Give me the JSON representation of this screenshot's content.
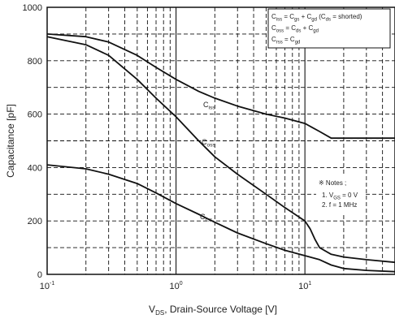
{
  "chart_data": {
    "type": "line",
    "title": "",
    "xlabel_main": "V",
    "xlabel_sub": "DS",
    "xlabel_rest": ", Drain-Source Voltage [V]",
    "ylabel": "Capacitance [pF]",
    "xscale": "log",
    "xlim": [
      0.1,
      50
    ],
    "ylim": [
      0,
      1000
    ],
    "grid": true,
    "grid_style": "dashed",
    "xticks": [
      {
        "base": "10",
        "exp": "-1"
      },
      {
        "base": "10",
        "exp": "0"
      },
      {
        "base": "10",
        "exp": "1"
      }
    ],
    "yticks": [
      "0",
      "200",
      "400",
      "600",
      "800",
      "1000"
    ],
    "series": [
      {
        "name": "Ciss",
        "label_main": "C",
        "label_sub": "iss",
        "x": [
          0.1,
          0.2,
          0.3,
          0.5,
          0.7,
          1,
          1.5,
          2,
          3,
          5,
          7,
          10,
          13,
          16,
          20,
          30,
          50
        ],
        "values": [
          900,
          890,
          870,
          820,
          775,
          730,
          685,
          660,
          630,
          600,
          585,
          565,
          535,
          510,
          510,
          510,
          510
        ]
      },
      {
        "name": "Coss",
        "label_main": "C",
        "label_sub": "oss",
        "x": [
          0.1,
          0.2,
          0.3,
          0.5,
          0.7,
          1,
          1.5,
          2,
          3,
          5,
          7,
          10,
          11,
          12,
          13,
          16,
          20,
          30,
          50
        ],
        "values": [
          890,
          860,
          820,
          730,
          660,
          590,
          500,
          440,
          375,
          300,
          250,
          200,
          170,
          130,
          100,
          75,
          65,
          55,
          45
        ]
      },
      {
        "name": "Crss",
        "label_main": "C",
        "label_sub": "rss",
        "x": [
          0.1,
          0.2,
          0.3,
          0.5,
          0.7,
          1,
          1.5,
          2,
          3,
          5,
          7,
          10,
          13,
          16,
          20,
          30,
          50
        ],
        "values": [
          410,
          395,
          375,
          340,
          305,
          265,
          225,
          195,
          155,
          115,
          90,
          70,
          55,
          35,
          22,
          15,
          10
        ]
      }
    ],
    "legend_lines": [
      [
        {
          "t": "C",
          "sub": false
        },
        {
          "t": "iss",
          "sub": true
        },
        {
          "t": " = C",
          "sub": false
        },
        {
          "t": "gs",
          "sub": true
        },
        {
          "t": " + C",
          "sub": false
        },
        {
          "t": "gd",
          "sub": true
        },
        {
          "t": " (C",
          "sub": false
        },
        {
          "t": "ds",
          "sub": true
        },
        {
          "t": " = shorted)",
          "sub": false
        }
      ],
      [
        {
          "t": "C",
          "sub": false
        },
        {
          "t": "oss",
          "sub": true
        },
        {
          "t": " = C",
          "sub": false
        },
        {
          "t": "ds",
          "sub": true
        },
        {
          "t": " + C",
          "sub": false
        },
        {
          "t": "gd",
          "sub": true
        }
      ],
      [
        {
          "t": "C",
          "sub": false
        },
        {
          "t": "rss",
          "sub": true
        },
        {
          "t": " = C",
          "sub": false
        },
        {
          "t": "gd",
          "sub": true
        }
      ]
    ],
    "notes_title": "※ Notes ;",
    "notes_lines": [
      [
        {
          "t": "1. V",
          "sub": false
        },
        {
          "t": "GS",
          "sub": true
        },
        {
          "t": " = 0 V",
          "sub": false
        }
      ],
      [
        {
          "t": "2. f = 1 MHz",
          "sub": false
        }
      ]
    ]
  }
}
